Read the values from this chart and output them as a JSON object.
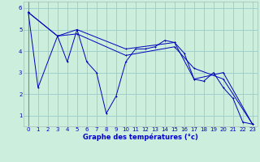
{
  "background_color": "#cceedd",
  "line_color": "#0000bb",
  "grid_color": "#99cccc",
  "xlabel": "Graphe des températures (°c)",
  "xlabel_color": "#0000cc",
  "ylim": [
    0.5,
    6.3
  ],
  "xlim": [
    -0.5,
    23.5
  ],
  "line1_x": [
    0,
    1,
    3,
    4,
    5,
    6,
    7,
    8,
    9,
    10,
    11,
    12,
    13,
    14,
    15,
    16,
    17,
    18,
    19,
    20,
    21,
    22,
    23
  ],
  "line1_y": [
    5.8,
    2.3,
    4.7,
    3.5,
    5.0,
    3.5,
    3.0,
    1.1,
    1.9,
    3.5,
    4.1,
    4.1,
    4.2,
    4.5,
    4.4,
    3.9,
    2.7,
    2.6,
    3.0,
    2.3,
    1.8,
    0.7,
    0.6
  ],
  "line2_x": [
    0,
    3,
    5,
    10,
    15,
    17,
    20,
    23
  ],
  "line2_y": [
    5.8,
    4.7,
    5.0,
    4.1,
    4.4,
    2.7,
    3.0,
    0.6
  ],
  "line3_x": [
    0,
    3,
    5,
    10,
    15,
    17,
    20,
    23
  ],
  "line3_y": [
    5.8,
    4.7,
    4.8,
    3.8,
    4.2,
    3.2,
    2.7,
    0.6
  ],
  "yticks": [
    1,
    2,
    3,
    4,
    5,
    6
  ],
  "xticks": [
    0,
    1,
    2,
    3,
    4,
    5,
    6,
    7,
    8,
    9,
    10,
    11,
    12,
    13,
    14,
    15,
    16,
    17,
    18,
    19,
    20,
    21,
    22,
    23
  ]
}
